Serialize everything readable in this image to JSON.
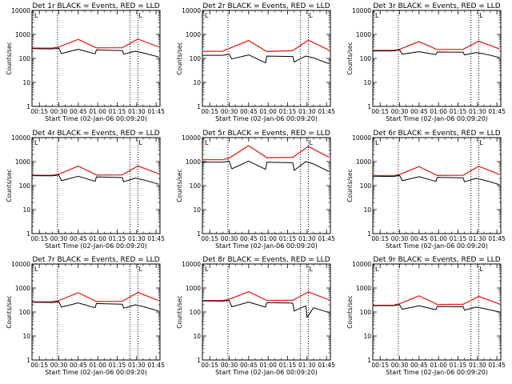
{
  "chart_data": [
    {
      "type": "line",
      "title": "Det 1r BLACK = Events, RED = LLD",
      "xlabel": "Start Time (02-Jan-06 00:09:20)",
      "ylabel": "Counts/sec",
      "yscale": "log",
      "ylim": [
        1,
        10000
      ],
      "xlim": [
        "00:09:20",
        "01:48:00"
      ],
      "x_tick_labels": [
        "00:15",
        "00:30",
        "00:45",
        "01:00",
        "01:15",
        "01:30",
        "01:45"
      ],
      "y_tick_labels": [
        "1",
        "10",
        "100",
        "1000",
        "10000"
      ],
      "markers": [
        "00:29",
        "01:25",
        "01:31"
      ],
      "marker_label": "L",
      "series": [
        {
          "name": "Events",
          "color": "#000000",
          "x": [
            "00:09",
            "00:25",
            "00:30",
            "00:32",
            "00:45",
            "00:58",
            "00:59",
            "01:19",
            "01:20",
            "01:29",
            "01:35",
            "01:47"
          ],
          "y": [
            255,
            250,
            270,
            160,
            240,
            155,
            225,
            210,
            150,
            200,
            170,
            115
          ]
        },
        {
          "name": "LLD",
          "color": "#e8201a",
          "x": [
            "00:09",
            "00:25",
            "00:30",
            "00:45",
            "00:58",
            "00:59",
            "01:19",
            "01:31",
            "01:47"
          ],
          "y": [
            270,
            270,
            300,
            620,
            290,
            275,
            280,
            640,
            300
          ]
        }
      ]
    },
    {
      "type": "line",
      "title": "Det 2r BLACK = Events, RED = LLD",
      "xlabel": "Start Time (02-Jan-06 00:09:20)",
      "ylabel": "Counts/sec",
      "yscale": "log",
      "ylim": [
        1,
        10000
      ],
      "xlim": [
        "00:09:20",
        "01:48:00"
      ],
      "x_tick_labels": [
        "00:15",
        "00:30",
        "00:45",
        "01:00",
        "01:15",
        "01:30",
        "01:45"
      ],
      "y_tick_labels": [
        "1",
        "10",
        "100",
        "1000",
        "10000"
      ],
      "markers": [
        "00:29",
        "01:25",
        "01:31"
      ],
      "marker_label": "L",
      "series": [
        {
          "name": "Events",
          "color": "#000000",
          "x": [
            "00:09",
            "00:25",
            "00:30",
            "00:32",
            "00:45",
            "00:58",
            "00:59",
            "01:19",
            "01:20",
            "01:29",
            "01:35",
            "01:47"
          ],
          "y": [
            135,
            135,
            150,
            95,
            140,
            65,
            125,
            120,
            70,
            125,
            105,
            60
          ]
        },
        {
          "name": "LLD",
          "color": "#e8201a",
          "x": [
            "00:09",
            "00:25",
            "00:30",
            "00:45",
            "00:58",
            "00:59",
            "01:19",
            "01:31",
            "01:47"
          ],
          "y": [
            195,
            200,
            260,
            560,
            205,
            195,
            210,
            580,
            220
          ]
        }
      ]
    },
    {
      "type": "line",
      "title": "Det 3r BLACK = Events, RED = LLD",
      "xlabel": "Start Time (02-Jan-06 00:09:20)",
      "ylabel": "Counts/sec",
      "yscale": "log",
      "ylim": [
        1,
        10000
      ],
      "xlim": [
        "00:09:20",
        "01:48:00"
      ],
      "x_tick_labels": [
        "00:15",
        "00:30",
        "00:45",
        "01:00",
        "01:15",
        "01:30",
        "01:45"
      ],
      "y_tick_labels": [
        "1",
        "10",
        "100",
        "1000",
        "10000"
      ],
      "markers": [
        "00:29",
        "01:25",
        "01:31"
      ],
      "marker_label": "L",
      "series": [
        {
          "name": "Events",
          "color": "#000000",
          "x": [
            "00:09",
            "00:25",
            "00:30",
            "00:32",
            "00:45",
            "00:58",
            "00:59",
            "01:19",
            "01:20",
            "01:29",
            "01:35",
            "01:47"
          ],
          "y": [
            205,
            205,
            225,
            150,
            190,
            145,
            185,
            180,
            140,
            175,
            155,
            110
          ]
        },
        {
          "name": "LLD",
          "color": "#e8201a",
          "x": [
            "00:09",
            "00:25",
            "00:30",
            "00:45",
            "00:58",
            "00:59",
            "01:19",
            "01:31",
            "01:47"
          ],
          "y": [
            215,
            215,
            240,
            500,
            245,
            235,
            240,
            520,
            250
          ]
        }
      ]
    },
    {
      "type": "line",
      "title": "Det 4r BLACK = Events, RED = LLD",
      "xlabel": "Start Time (02-Jan-06 00:09:20)",
      "ylabel": "Counts/sec",
      "yscale": "log",
      "ylim": [
        1,
        10000
      ],
      "xlim": [
        "00:09:20",
        "01:48:00"
      ],
      "x_tick_labels": [
        "00:15",
        "00:30",
        "00:45",
        "01:00",
        "01:15",
        "01:30",
        "01:45"
      ],
      "y_tick_labels": [
        "1",
        "10",
        "100",
        "1000",
        "10000"
      ],
      "markers": [
        "00:29",
        "01:25",
        "01:31"
      ],
      "marker_label": "L",
      "series": [
        {
          "name": "Events",
          "color": "#000000",
          "x": [
            "00:09",
            "00:25",
            "00:30",
            "00:32",
            "00:45",
            "00:58",
            "00:59",
            "01:19",
            "01:20",
            "01:29",
            "01:35",
            "01:47"
          ],
          "y": [
            260,
            255,
            275,
            160,
            245,
            150,
            230,
            215,
            145,
            205,
            175,
            115
          ]
        },
        {
          "name": "LLD",
          "color": "#e8201a",
          "x": [
            "00:09",
            "00:25",
            "00:30",
            "00:45",
            "00:58",
            "00:59",
            "01:19",
            "01:31",
            "01:47"
          ],
          "y": [
            270,
            270,
            300,
            650,
            290,
            275,
            280,
            660,
            310
          ]
        }
      ]
    },
    {
      "type": "line",
      "title": "Det 5r BLACK = Events, RED = LLD",
      "xlabel": "Start Time (02-Jan-06 00:09:20)",
      "ylabel": "Counts/sec",
      "yscale": "log",
      "ylim": [
        1,
        10000
      ],
      "xlim": [
        "00:09:20",
        "01:48:00"
      ],
      "x_tick_labels": [
        "00:15",
        "00:30",
        "00:45",
        "01:00",
        "01:15",
        "01:30",
        "01:45"
      ],
      "y_tick_labels": [
        "1",
        "10",
        "100",
        "1000",
        "10000"
      ],
      "markers": [
        "00:29",
        "01:25",
        "01:31"
      ],
      "marker_label": "L",
      "series": [
        {
          "name": "Events",
          "color": "#000000",
          "x": [
            "00:09",
            "00:25",
            "00:30",
            "00:32",
            "00:45",
            "00:58",
            "00:59",
            "01:19",
            "01:20",
            "01:29",
            "01:35",
            "01:47"
          ],
          "y": [
            950,
            950,
            1050,
            500,
            1050,
            480,
            950,
            900,
            430,
            1000,
            800,
            380
          ]
        },
        {
          "name": "LLD",
          "color": "#e8201a",
          "x": [
            "00:09",
            "00:25",
            "00:30",
            "00:45",
            "00:58",
            "00:59",
            "01:19",
            "01:31",
            "01:47"
          ],
          "y": [
            1200,
            1200,
            1400,
            4600,
            1600,
            1450,
            1500,
            4300,
            1500
          ]
        }
      ]
    },
    {
      "type": "line",
      "title": "Det 6r BLACK = Events, RED = LLD",
      "xlabel": "Start Time (02-Jan-06 00:09:20)",
      "ylabel": "Counts/sec",
      "yscale": "log",
      "ylim": [
        1,
        10000
      ],
      "xlim": [
        "00:09:20",
        "01:48:00"
      ],
      "x_tick_labels": [
        "00:15",
        "00:30",
        "00:45",
        "01:00",
        "01:15",
        "01:30",
        "01:45"
      ],
      "y_tick_labels": [
        "1",
        "10",
        "100",
        "1000",
        "10000"
      ],
      "markers": [
        "00:29",
        "01:25",
        "01:31"
      ],
      "marker_label": "L",
      "series": [
        {
          "name": "Events",
          "color": "#000000",
          "x": [
            "00:09",
            "00:25",
            "00:30",
            "00:32",
            "00:45",
            "00:58",
            "00:59",
            "01:19",
            "01:20",
            "01:29",
            "01:35",
            "01:47"
          ],
          "y": [
            245,
            240,
            265,
            160,
            235,
            150,
            220,
            210,
            145,
            200,
            170,
            110
          ]
        },
        {
          "name": "LLD",
          "color": "#e8201a",
          "x": [
            "00:09",
            "00:25",
            "00:30",
            "00:45",
            "00:58",
            "00:59",
            "01:19",
            "01:31",
            "01:47"
          ],
          "y": [
            260,
            260,
            290,
            620,
            280,
            265,
            270,
            640,
            290
          ]
        }
      ]
    },
    {
      "type": "line",
      "title": "Det 7r BLACK = Events, RED = LLD",
      "xlabel": "Start Time (02-Jan-06 00:09:20)",
      "ylabel": "Counts/sec",
      "yscale": "log",
      "ylim": [
        1,
        10000
      ],
      "xlim": [
        "00:09:20",
        "01:48:00"
      ],
      "x_tick_labels": [
        "00:15",
        "00:30",
        "00:45",
        "01:00",
        "01:15",
        "01:30",
        "01:45"
      ],
      "y_tick_labels": [
        "1",
        "10",
        "100",
        "1000",
        "10000"
      ],
      "markers": [
        "00:29",
        "01:25",
        "01:31"
      ],
      "marker_label": "L",
      "series": [
        {
          "name": "Events",
          "color": "#000000",
          "x": [
            "00:09",
            "00:25",
            "00:30",
            "00:32",
            "00:45",
            "00:58",
            "00:59",
            "01:19",
            "01:20",
            "01:29",
            "01:35",
            "01:47"
          ],
          "y": [
            255,
            250,
            270,
            160,
            240,
            150,
            225,
            210,
            145,
            200,
            170,
            110
          ]
        },
        {
          "name": "LLD",
          "color": "#e8201a",
          "x": [
            "00:09",
            "00:25",
            "00:30",
            "00:45",
            "00:58",
            "00:59",
            "01:19",
            "01:31",
            "01:47"
          ],
          "y": [
            265,
            265,
            300,
            640,
            290,
            275,
            280,
            650,
            300
          ]
        }
      ]
    },
    {
      "type": "line",
      "title": "Det 8r BLACK = Events, RED = LLD",
      "xlabel": "Start Time (02-Jan-06 00:09:20)",
      "ylabel": "Counts/sec",
      "yscale": "log",
      "ylim": [
        1,
        10000
      ],
      "xlim": [
        "00:09:20",
        "01:48:00"
      ],
      "x_tick_labels": [
        "00:15",
        "00:30",
        "00:45",
        "01:00",
        "01:15",
        "01:30",
        "01:45"
      ],
      "y_tick_labels": [
        "1",
        "10",
        "100",
        "1000",
        "10000"
      ],
      "markers": [
        "00:29",
        "01:25",
        "01:31"
      ],
      "marker_label": "L",
      "series": [
        {
          "name": "Events",
          "color": "#000000",
          "x": [
            "00:09",
            "00:25",
            "00:30",
            "00:32",
            "00:45",
            "00:58",
            "00:59",
            "01:19",
            "01:20",
            "01:29",
            "01:30",
            "01:35",
            "01:47"
          ],
          "y": [
            290,
            285,
            300,
            165,
            260,
            160,
            245,
            235,
            110,
            180,
            60,
            150,
            95
          ]
        },
        {
          "name": "LLD",
          "color": "#e8201a",
          "x": [
            "00:09",
            "00:25",
            "00:30",
            "00:45",
            "00:58",
            "00:59",
            "01:19",
            "01:31",
            "01:47"
          ],
          "y": [
            300,
            300,
            340,
            700,
            320,
            305,
            310,
            680,
            320
          ]
        }
      ]
    },
    {
      "type": "line",
      "title": "Det 9r BLACK = Events, RED = LLD",
      "xlabel": "Start Time (02-Jan-06 00:09:20)",
      "ylabel": "Counts/sec",
      "yscale": "log",
      "ylim": [
        1,
        10000
      ],
      "xlim": [
        "00:09:20",
        "01:48:00"
      ],
      "x_tick_labels": [
        "00:15",
        "00:30",
        "00:45",
        "01:00",
        "01:15",
        "01:30",
        "01:45"
      ],
      "y_tick_labels": [
        "1",
        "10",
        "100",
        "1000",
        "10000"
      ],
      "markers": [
        "00:29",
        "01:25",
        "01:31"
      ],
      "marker_label": "L",
      "series": [
        {
          "name": "Events",
          "color": "#000000",
          "x": [
            "00:09",
            "00:25",
            "00:30",
            "00:32",
            "00:45",
            "00:58",
            "00:59",
            "01:19",
            "01:20",
            "01:29",
            "01:35",
            "01:47"
          ],
          "y": [
            185,
            185,
            200,
            130,
            180,
            125,
            170,
            165,
            120,
            160,
            140,
            100
          ]
        },
        {
          "name": "LLD",
          "color": "#e8201a",
          "x": [
            "00:09",
            "00:25",
            "00:30",
            "00:45",
            "00:58",
            "00:59",
            "01:19",
            "01:31",
            "01:47"
          ],
          "y": [
            190,
            190,
            220,
            470,
            220,
            205,
            210,
            450,
            215
          ]
        }
      ]
    }
  ]
}
